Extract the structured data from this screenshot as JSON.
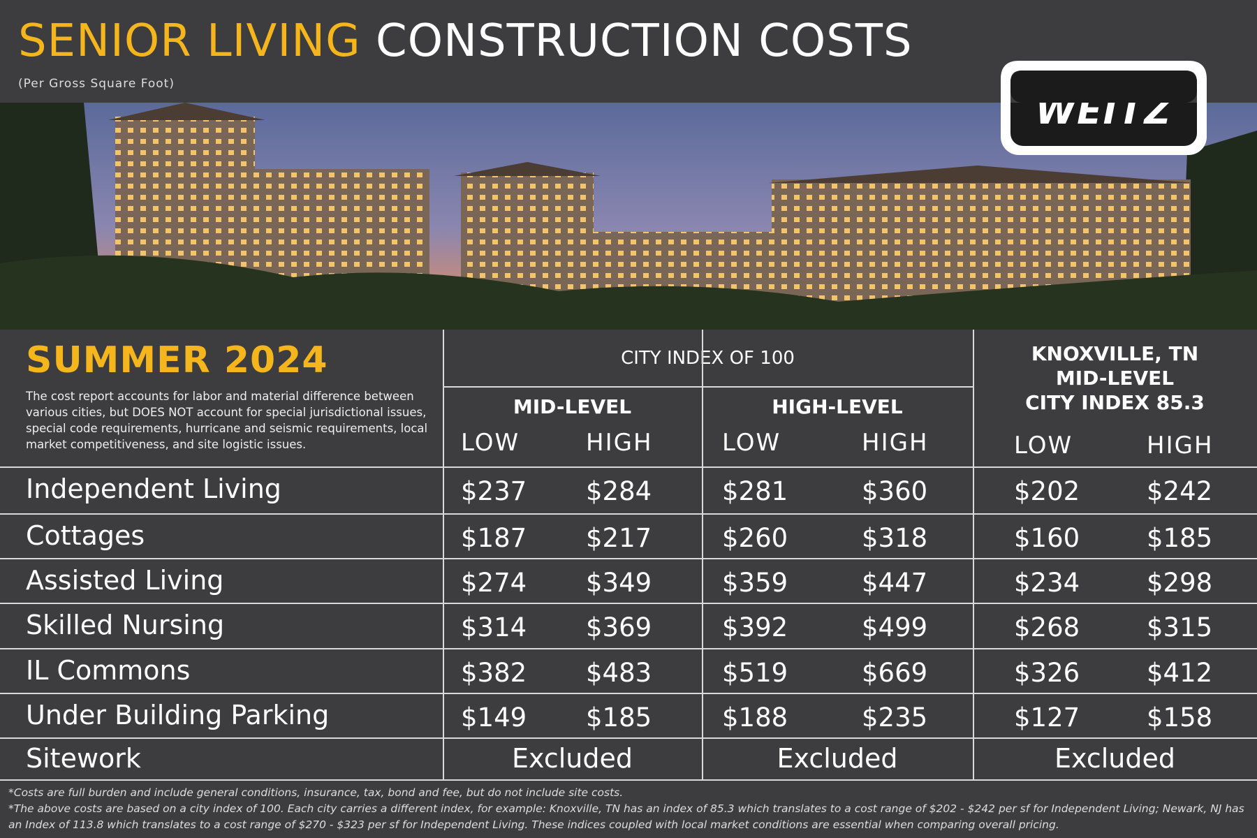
{
  "header": {
    "title_highlight": "SENIOR LIVING",
    "title_rest": "CONSTRUCTION COSTS",
    "subtitle": "(Per Gross Square Foot)",
    "logo": "WEITZ"
  },
  "intro": {
    "season": "SUMMER 2024",
    "description": "The cost report accounts for labor and material difference between various cities, but DOES NOT account for special jurisdictional issues, special code requirements, hurricane and seismic requirements, local market competitiveness, and site logistic issues."
  },
  "table": {
    "group_header": "CITY INDEX OF 100",
    "knoxville_header": [
      "KNOXVILLE, TN",
      "MID-LEVEL",
      "CITY INDEX 85.3"
    ],
    "levels": [
      "MID-LEVEL",
      "HIGH-LEVEL"
    ],
    "subheaders": [
      "LOW",
      "HIGH",
      "LOW",
      "HIGH",
      "LOW",
      "HIGH"
    ],
    "rows": [
      [
        "Independent Living",
        "$237",
        "$284",
        "$281",
        "$360",
        "$202",
        "$242"
      ],
      [
        "Cottages",
        "$187",
        "$217",
        "$260",
        "$318",
        "$160",
        "$185"
      ],
      [
        "Assisted Living",
        "$274",
        "$349",
        "$359",
        "$447",
        "$234",
        "$298"
      ],
      [
        "Skilled Nursing",
        "$314",
        "$369",
        "$392",
        "$499",
        "$268",
        "$315"
      ],
      [
        "IL Commons",
        "$382",
        "$483",
        "$519",
        "$669",
        "$326",
        "$412"
      ],
      [
        "Under Building Parking",
        "$149",
        "$185",
        "$188",
        "$235",
        "$127",
        "$158"
      ]
    ],
    "sitework": {
      "label": "Sitework",
      "cells": [
        "Excluded",
        "Excluded",
        "Excluded"
      ]
    }
  },
  "footnotes": [
    "*Costs are full burden and include general conditions, insurance, tax, bond and fee, but do not include site costs.",
    "*The above costs are based on a city index of 100.  Each city carries a different index, for example:  Knoxville, TN has an index of 85.3 which translates to a cost range of $202 - $242 per sf for Independent Living; Newark, NJ has an Index of 113.8 which translates to a cost range of $270 - $323 per sf for Independent Living. These indices coupled with local market conditions are essential when comparing overall pricing."
  ]
}
